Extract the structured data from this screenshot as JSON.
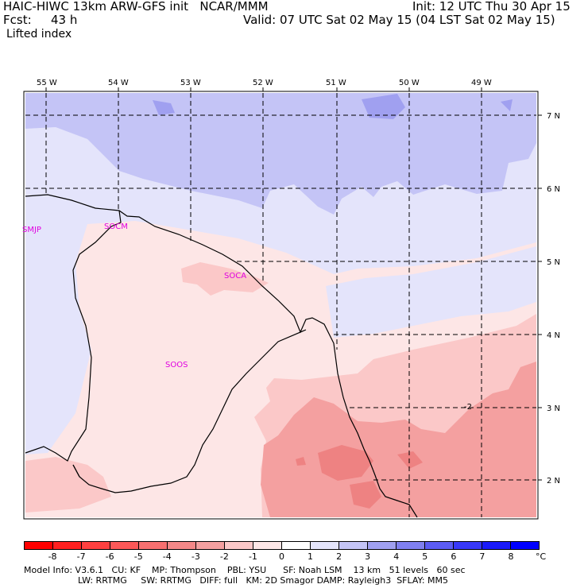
{
  "header": {
    "model": "HAIC-HIWC 13km ARW-GFS init   NCAR/MMM",
    "init": "Init: 12 UTC Thu 30 Apr 15",
    "fcst_label": "Fcst:",
    "fcst_value": "43 h",
    "valid": "Valid: 07 UTC Sat 02 May 15 (04 LST Sat 02 May 15)",
    "field": "Lifted index"
  },
  "map": {
    "lon_labels": [
      "55 W",
      "54 W",
      "53 W",
      "52 W",
      "51 W",
      "50 W",
      "49 W"
    ],
    "lat_labels": [
      "7 N",
      "6 N",
      "5 N",
      "4 N",
      "3 N",
      "2 N"
    ],
    "stations": [
      "SMJP",
      "SOCM",
      "SOCA",
      "SOOS"
    ],
    "contour_label": "-2",
    "colors": {
      "plus3": "#a0a0f0",
      "plus2": "#c4c4f6",
      "plus1": "#e4e4fb",
      "zero": "#ffffff",
      "minus1": "#fde6e6",
      "minus2": "#fbc8c8",
      "minus3": "#f4a0a0",
      "minus4": "#ee8282"
    }
  },
  "colorbar": {
    "labels": [
      "-8",
      "-7",
      "-6",
      "-5",
      "-4",
      "-3",
      "-2",
      "-1",
      "0",
      "1",
      "2",
      "3",
      "4",
      "5",
      "6",
      "7",
      "8"
    ],
    "unit": "°C",
    "colors": [
      "#ff0000",
      "#ff2020",
      "#ff4040",
      "#fc5858",
      "#f87070",
      "#f48888",
      "#f4a0a0",
      "#fbc8c8",
      "#fde6e6",
      "#ffffff",
      "#e4e4fb",
      "#c4c4f6",
      "#a0a0f0",
      "#8080f0",
      "#5c5cf4",
      "#3838f8",
      "#1a1af9",
      "#0000ff"
    ]
  },
  "footer": {
    "line1": "Model Info: V3.6.1   CU: KF    MP: Thompson    PBL: YSU      SF: Noah LSM    13 km   51 levels   60 sec",
    "line2": "LW: RRTMG     SW: RRTMG   DIFF: full   KM: 2D Smagor DAMP: Rayleigh3  SFLAY: MM5"
  }
}
